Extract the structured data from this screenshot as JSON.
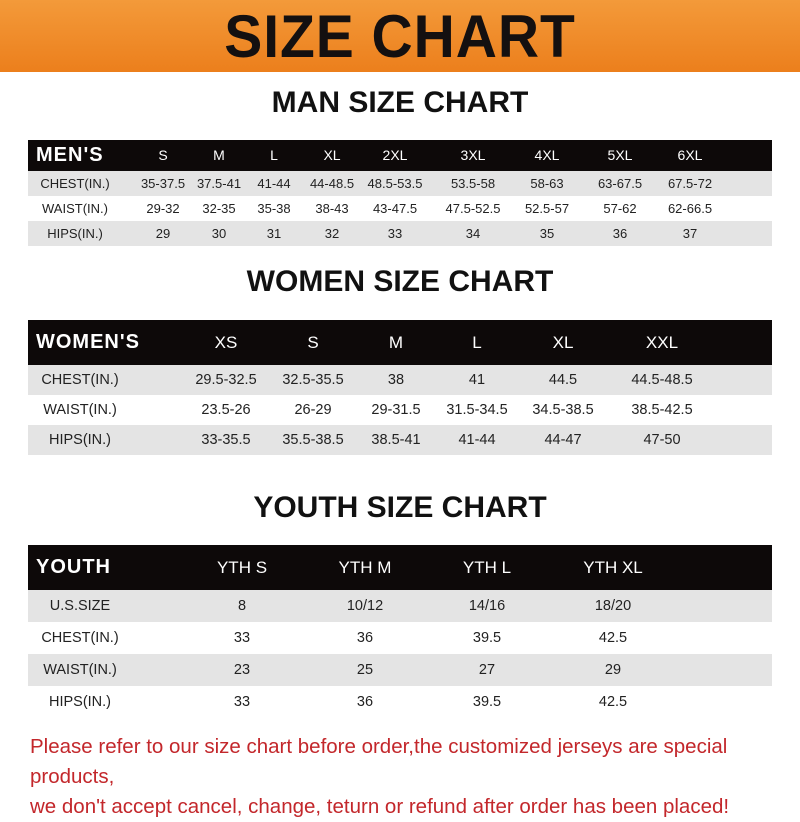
{
  "banner_title": "SIZE CHART",
  "men": {
    "title": "MAN SIZE CHART",
    "header": "MEN'S",
    "sizes": [
      "S",
      "M",
      "L",
      "XL",
      "2XL",
      "3XL",
      "4XL",
      "5XL",
      "6XL"
    ],
    "rows": [
      {
        "label": "CHEST(IN.)",
        "values": [
          "35-37.5",
          "37.5-41",
          "41-44",
          "44-48.5",
          "48.5-53.5",
          "53.5-58",
          "58-63",
          "63-67.5",
          "67.5-72"
        ]
      },
      {
        "label": "WAIST(IN.)",
        "values": [
          "29-32",
          "32-35",
          "35-38",
          "38-43",
          "43-47.5",
          "47.5-52.5",
          "52.5-57",
          "57-62",
          "62-66.5"
        ]
      },
      {
        "label": "HIPS(IN.)",
        "values": [
          "29",
          "30",
          "31",
          "32",
          "33",
          "34",
          "35",
          "36",
          "37"
        ]
      }
    ]
  },
  "women": {
    "title": "WOMEN SIZE CHART",
    "header": "WOMEN'S",
    "sizes": [
      "XS",
      "S",
      "M",
      "L",
      "XL",
      "XXL"
    ],
    "rows": [
      {
        "label": "CHEST(IN.)",
        "values": [
          "29.5-32.5",
          "32.5-35.5",
          "38",
          "41",
          "44.5",
          "44.5-48.5"
        ]
      },
      {
        "label": "WAIST(IN.)",
        "values": [
          "23.5-26",
          "26-29",
          "29-31.5",
          "31.5-34.5",
          "34.5-38.5",
          "38.5-42.5"
        ]
      },
      {
        "label": "HIPS(IN.)",
        "values": [
          "33-35.5",
          "35.5-38.5",
          "38.5-41",
          "41-44",
          "44-47",
          "47-50"
        ]
      }
    ]
  },
  "youth": {
    "title": "YOUTH SIZE CHART",
    "header": "YOUTH",
    "sizes": [
      "YTH S",
      "YTH M",
      "YTH L",
      "YTH XL"
    ],
    "rows": [
      {
        "label": "U.S.SIZE",
        "values": [
          "8",
          "10/12",
          "14/16",
          "18/20"
        ]
      },
      {
        "label": "CHEST(IN.)",
        "values": [
          "33",
          "36",
          "39.5",
          "42.5"
        ]
      },
      {
        "label": "WAIST(IN.)",
        "values": [
          "23",
          "25",
          "27",
          "29"
        ]
      },
      {
        "label": "HIPS(IN.)",
        "values": [
          "33",
          "36",
          "39.5",
          "42.5"
        ]
      }
    ]
  },
  "footer": {
    "line1": "Please refer to our size chart before order,the customized jerseys are special products,",
    "line2": "we don't accept cancel, change, teturn or refund after order has been placed!"
  }
}
